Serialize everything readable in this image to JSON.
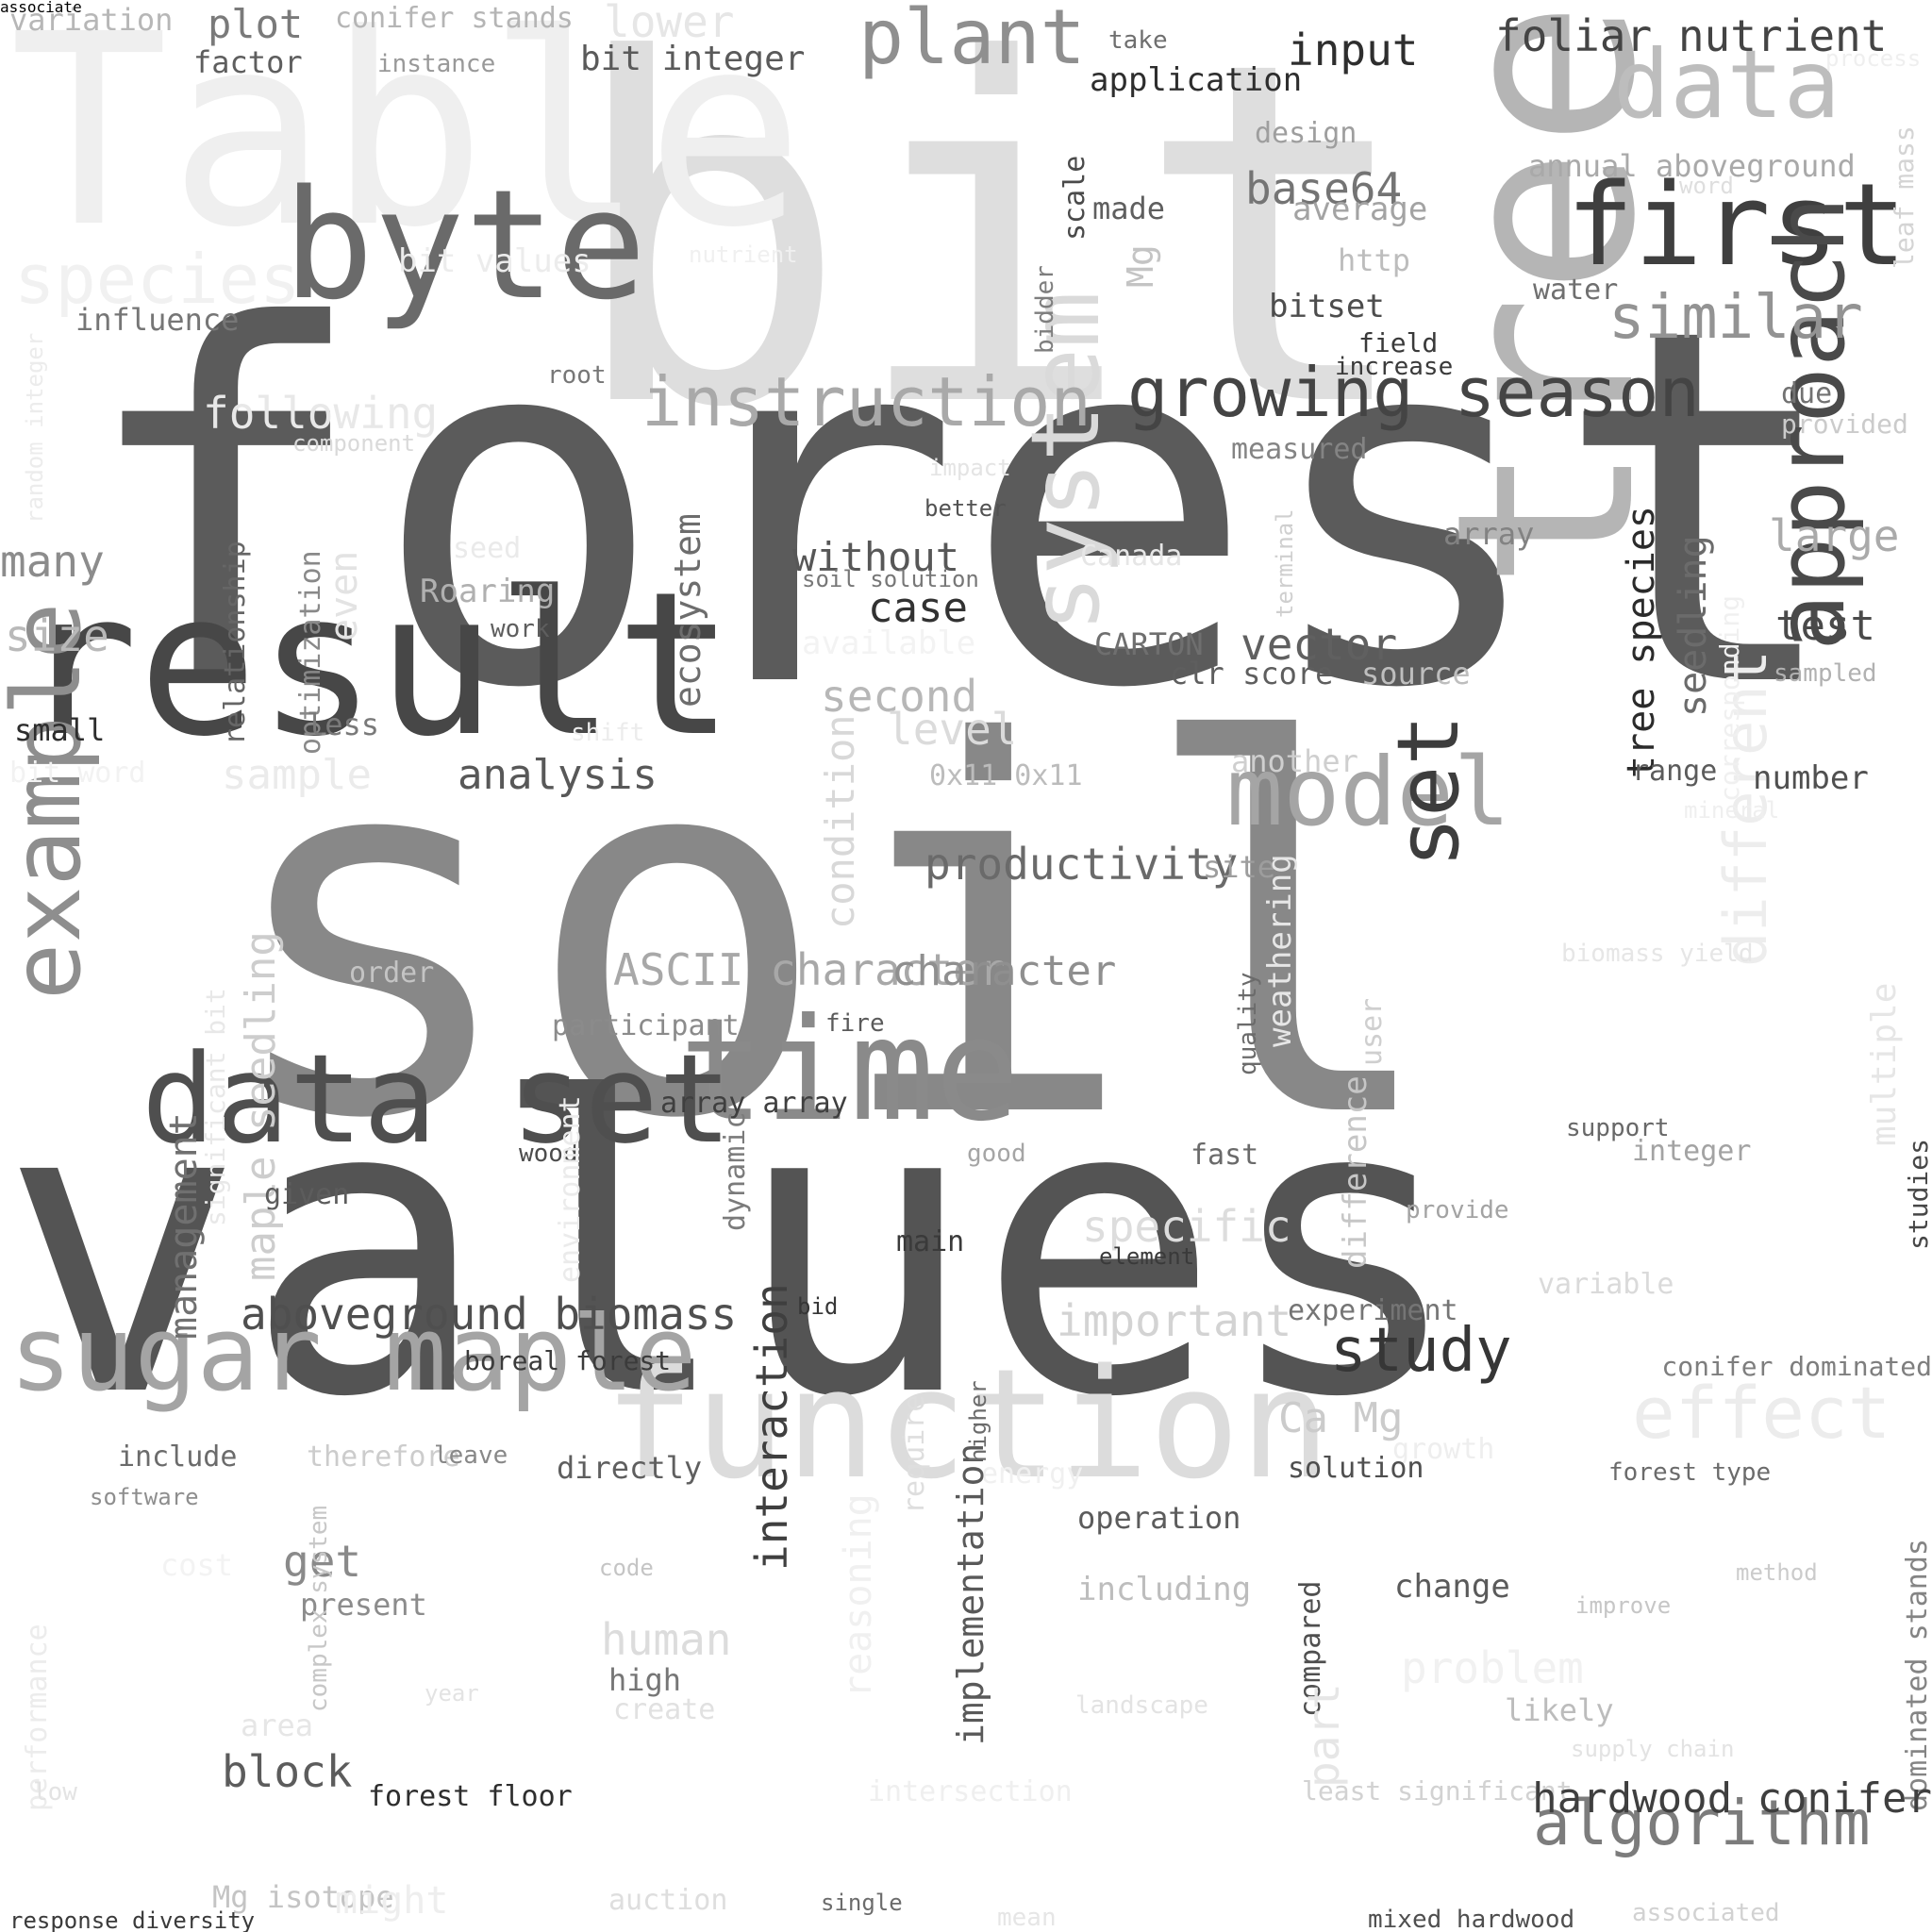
{
  "words": [
    {
      "text": "bit",
      "color": "#dedede"
    },
    {
      "text": "Table",
      "color": "#efefef"
    },
    {
      "text": "forest",
      "color": "#5b5b5b"
    },
    {
      "text": "soil",
      "color": "#888888"
    },
    {
      "text": "values",
      "color": "#545454"
    },
    {
      "text": "result",
      "color": "#474747"
    },
    {
      "text": "tree",
      "color": "#b5b5b5"
    },
    {
      "text": "byte",
      "color": "#6a6a6a"
    },
    {
      "text": "time",
      "color": "#8a8a8a"
    },
    {
      "text": "function",
      "color": "#dcdcdc"
    },
    {
      "text": "first",
      "color": "#3f3f3f"
    },
    {
      "text": "data",
      "color": "#bdbdbd"
    },
    {
      "text": "plant",
      "color": "#8f8f8f"
    },
    {
      "text": "data set",
      "color": "#4f4f4f"
    },
    {
      "text": "sugar maple",
      "color": "#a4a4a4"
    },
    {
      "text": "example",
      "color": "#8e8e8e"
    },
    {
      "text": "system",
      "color": "#dadada"
    },
    {
      "text": "approach",
      "color": "#4a4a4a"
    },
    {
      "text": "model",
      "color": "#a5a5a5"
    },
    {
      "text": "growing season",
      "color": "#444444"
    },
    {
      "text": "instruction",
      "color": "#a9a9a9"
    },
    {
      "text": "similar",
      "color": "#939393"
    },
    {
      "text": "set",
      "color": "#3d3d3d"
    },
    {
      "text": "study",
      "color": "#363636"
    },
    {
      "text": "effect",
      "color": "#ececec"
    },
    {
      "text": "algorithm",
      "color": "#7c7c7c"
    },
    {
      "text": "different",
      "color": "#ededed"
    },
    {
      "text": "species",
      "color": "#f1f1f1"
    },
    {
      "text": "aboveground biomass",
      "color": "#4f4f4f"
    },
    {
      "text": "foliar nutrient",
      "color": "#444444"
    },
    {
      "text": "input",
      "color": "#2e2e2e"
    },
    {
      "text": "variation",
      "color": "#b7b7b7"
    },
    {
      "text": "plot",
      "color": "#7a7a7a"
    },
    {
      "text": "conifer stands",
      "color": "#b5b5b5"
    },
    {
      "text": "lower",
      "color": "#e6e6e6"
    },
    {
      "text": "factor",
      "color": "#5e5e5e"
    },
    {
      "text": "instance",
      "color": "#999999"
    },
    {
      "text": "bit integer",
      "color": "#5a5a5a"
    },
    {
      "text": "take",
      "color": "#6f6f6f"
    },
    {
      "text": "application",
      "color": "#2e2e2e"
    },
    {
      "text": "process",
      "color": "#efefef"
    },
    {
      "text": "leaf mass",
      "color": "#d4d4d4"
    },
    {
      "text": "annual aboveground",
      "color": "#a9a9a9"
    },
    {
      "text": "word",
      "color": "#dedede"
    },
    {
      "text": "design",
      "color": "#9e9e9e"
    },
    {
      "text": "base64",
      "color": "#747474"
    },
    {
      "text": "average",
      "color": "#a3a3a3"
    },
    {
      "text": "made",
      "color": "#5f5f5f"
    },
    {
      "text": "scale",
      "color": "#4a4a4a"
    },
    {
      "text": "bidder",
      "color": "#7e7e7e"
    },
    {
      "text": "Mg",
      "color": "#c4c4c4"
    },
    {
      "text": "http",
      "color": "#bdbdbd"
    },
    {
      "text": "water",
      "color": "#6f6f6f"
    },
    {
      "text": "bitset",
      "color": "#4d4d4d"
    },
    {
      "text": "field",
      "color": "#3a3a3a"
    },
    {
      "text": "increase",
      "color": "#3a3a3a"
    },
    {
      "text": "bit values",
      "color": "#ececec"
    },
    {
      "text": "nutrient",
      "color": "#f0f0f0"
    },
    {
      "text": "influence",
      "color": "#767676"
    },
    {
      "text": "random integer",
      "color": "#ececec"
    },
    {
      "text": "root",
      "color": "#777777"
    },
    {
      "text": "following",
      "color": "#e8e8e8"
    },
    {
      "text": "component",
      "color": "#d9d9d9"
    },
    {
      "text": "due",
      "color": "#727272"
    },
    {
      "text": "provided",
      "color": "#cbcbcb"
    },
    {
      "text": "measured",
      "color": "#848484"
    },
    {
      "text": "impact",
      "color": "#e4e4e4"
    },
    {
      "text": "better",
      "color": "#525252"
    },
    {
      "text": "terminal",
      "color": "#cfcfcf"
    },
    {
      "text": "array",
      "color": "#828282"
    },
    {
      "text": "large",
      "color": "#aaaaaa"
    },
    {
      "text": "many",
      "color": "#8c8c8c"
    },
    {
      "text": "size",
      "color": "#b9b9b9"
    },
    {
      "text": "relationship",
      "color": "#666666"
    },
    {
      "text": "optimization",
      "color": "#898989"
    },
    {
      "text": "even",
      "color": "#e3e3e3"
    },
    {
      "text": "seed",
      "color": "#eaeaea"
    },
    {
      "text": "Roaring",
      "color": "#b0b0b0"
    },
    {
      "text": "work",
      "color": "#5e5e5e"
    },
    {
      "text": "ecosystem",
      "color": "#6d6d6d"
    },
    {
      "text": "without",
      "color": "#575757"
    },
    {
      "text": "soil solution",
      "color": "#777777"
    },
    {
      "text": "case",
      "color": "#323232"
    },
    {
      "text": "Canada",
      "color": "#e6e6e6"
    },
    {
      "text": "tree species",
      "color": "#2b2b2b"
    },
    {
      "text": "seedling",
      "color": "#6b6b6b"
    },
    {
      "text": "corresponding",
      "color": "#f0f0f0"
    },
    {
      "text": "test",
      "color": "#4a4a4a"
    },
    {
      "text": "sampled",
      "color": "#b1b1b1"
    },
    {
      "text": "small",
      "color": "#2d2d2d"
    },
    {
      "text": "less",
      "color": "#7a7a7a"
    },
    {
      "text": "shift",
      "color": "#ececec"
    },
    {
      "text": "bit word",
      "color": "#f2f2f2"
    },
    {
      "text": "sample",
      "color": "#ebebeb"
    },
    {
      "text": "CARTON",
      "color": "#6f6f6f"
    },
    {
      "text": "vector",
      "color": "#606060"
    },
    {
      "text": "clr score",
      "color": "#5e5e5e"
    },
    {
      "text": "source",
      "color": "#bebebe"
    },
    {
      "text": "available",
      "color": "#f3f3f3"
    },
    {
      "text": "second",
      "color": "#b7b7b7"
    },
    {
      "text": "condition",
      "color": "#d8d8d8"
    },
    {
      "text": "level",
      "color": "#dbdbdb"
    },
    {
      "text": "analysis",
      "color": "#585858"
    },
    {
      "text": "another",
      "color": "#cfcfcf"
    },
    {
      "text": "range",
      "color": "#5b5b5b"
    },
    {
      "text": "number",
      "color": "#505050"
    },
    {
      "text": "0x11 0x11",
      "color": "#bcbcbc"
    },
    {
      "text": "mineral",
      "color": "#efefef"
    },
    {
      "text": "multiple",
      "color": "#e6e6e6"
    },
    {
      "text": "productivity",
      "color": "#6a6a6a"
    },
    {
      "text": "site",
      "color": "#9d9d9d"
    },
    {
      "text": "ASCII character",
      "color": "#a8a8a8"
    },
    {
      "text": "character",
      "color": "#8f8f8f"
    },
    {
      "text": "order",
      "color": "#c4c4c4"
    },
    {
      "text": "management",
      "color": "#707070"
    },
    {
      "text": "significant bit",
      "color": "#e8e8e8"
    },
    {
      "text": "maple seedling",
      "color": "#cdcdcd"
    },
    {
      "text": "participant",
      "color": "#8b8b8b"
    },
    {
      "text": "fire",
      "color": "#5b5b5b"
    },
    {
      "text": "quality",
      "color": "#6b6b6b"
    },
    {
      "text": "weathering",
      "color": "#e6e6e6"
    },
    {
      "text": "user",
      "color": "#cfcfcf"
    },
    {
      "text": "difference",
      "color": "#c6c6c6"
    },
    {
      "text": "biomass yield",
      "color": "#e6e6e6"
    },
    {
      "text": "array array",
      "color": "#3f3f3f"
    },
    {
      "text": "support",
      "color": "#686868"
    },
    {
      "text": "integer",
      "color": "#a3a3a3"
    },
    {
      "text": "wood",
      "color": "#4c4c4c"
    },
    {
      "text": "good",
      "color": "#a5a5a5"
    },
    {
      "text": "fast",
      "color": "#6a6a6a"
    },
    {
      "text": "dynamic",
      "color": "#7b7b7b"
    },
    {
      "text": "given",
      "color": "#5c5c5c"
    },
    {
      "text": "specific",
      "color": "#dddddd"
    },
    {
      "text": "provide",
      "color": "#a3a3a3"
    },
    {
      "text": "main",
      "color": "#3a3a3a"
    },
    {
      "text": "element",
      "color": "#3a3a3a"
    },
    {
      "text": "environment",
      "color": "#ebebeb"
    },
    {
      "text": "bid",
      "color": "#363636"
    },
    {
      "text": "important",
      "color": "#d3d3d3"
    },
    {
      "text": "variable",
      "color": "#dadada"
    },
    {
      "text": "experiment",
      "color": "#757575"
    },
    {
      "text": "boreal forest",
      "color": "#3b3b3b"
    },
    {
      "text": "studies",
      "color": "#474747"
    },
    {
      "text": "conifer dominated",
      "color": "#7e7e7e"
    },
    {
      "text": "Ca Mg",
      "color": "#cbcbcb"
    },
    {
      "text": "growth",
      "color": "#eeeeee"
    },
    {
      "text": "forest type",
      "color": "#6b6b6b"
    },
    {
      "text": "include",
      "color": "#6b6b6b"
    },
    {
      "text": "therefore",
      "color": "#cccccc"
    },
    {
      "text": "leave",
      "color": "#888888"
    },
    {
      "text": "directly",
      "color": "#5f5f5f"
    },
    {
      "text": "solution",
      "color": "#4f4f4f"
    },
    {
      "text": "energy",
      "color": "#f0f0f0"
    },
    {
      "text": "software",
      "color": "#8e8e8e"
    },
    {
      "text": "reasoning",
      "color": "#f0f0f0"
    },
    {
      "text": "interaction",
      "color": "#3f3f3f"
    },
    {
      "text": "require",
      "color": "#dedede"
    },
    {
      "text": "implementation",
      "color": "#595959"
    },
    {
      "text": "operation",
      "color": "#5c5c5c"
    },
    {
      "text": "higher",
      "color": "#6b6b6b"
    },
    {
      "text": "cost",
      "color": "#f3f3f3"
    },
    {
      "text": "get",
      "color": "#8a8a8a"
    },
    {
      "text": "present",
      "color": "#8c8c8c"
    },
    {
      "text": "code",
      "color": "#c5c5c5"
    },
    {
      "text": "including",
      "color": "#bdbdbd"
    },
    {
      "text": "change",
      "color": "#5a5a5a"
    },
    {
      "text": "method",
      "color": "#cbcbcb"
    },
    {
      "text": "improve",
      "color": "#c6c6c6"
    },
    {
      "text": "human",
      "color": "#dcdcdc"
    },
    {
      "text": "high",
      "color": "#767676"
    },
    {
      "text": "compared",
      "color": "#4f4f4f"
    },
    {
      "text": "problem",
      "color": "#f1f1f1"
    },
    {
      "text": "performance",
      "color": "#ececec"
    },
    {
      "text": "complex system",
      "color": "#c7c7c7"
    },
    {
      "text": "year",
      "color": "#e3e3e3"
    },
    {
      "text": "create",
      "color": "#e1e1e1"
    },
    {
      "text": "landscape",
      "color": "#e3e3e3"
    },
    {
      "text": "likely",
      "color": "#bcbcbc"
    },
    {
      "text": "dominated stands",
      "color": "#848484"
    },
    {
      "text": "supply chain",
      "color": "#e3e3e3"
    },
    {
      "text": "area",
      "color": "#e6e6e6"
    },
    {
      "text": "block",
      "color": "#5c5c5c"
    },
    {
      "text": "part",
      "color": "#e6e6e6"
    },
    {
      "text": "low",
      "color": "#e3e3e3"
    },
    {
      "text": "forest floor",
      "color": "#2e2e2e"
    },
    {
      "text": "intersection",
      "color": "#efefef"
    },
    {
      "text": "least significant",
      "color": "#d2d2d2"
    },
    {
      "text": "hardwood conifer",
      "color": "#3f3f3f"
    },
    {
      "text": "Mg isotope",
      "color": "#c4c4c4"
    },
    {
      "text": "might",
      "color": "#eeeeee"
    },
    {
      "text": "auction",
      "color": "#dedede"
    },
    {
      "text": "single",
      "color": "#6c6c6c"
    },
    {
      "text": "mean",
      "color": "#e6e6e6"
    },
    {
      "text": "mixed hardwood",
      "color": "#4f4f4f"
    },
    {
      "text": "associated",
      "color": "#d2d2d2"
    },
    {
      "text": "response diversity",
      "color": "#3a3a3a"
    },
    {
      "text": "associate",
      "color": "#f1f1f1"
    }
  ]
}
